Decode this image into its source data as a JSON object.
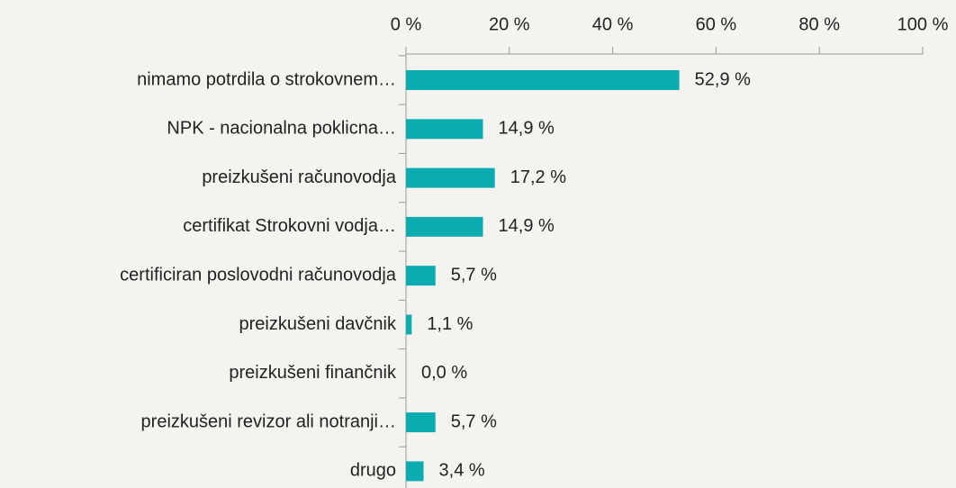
{
  "chart_data": {
    "type": "bar",
    "orientation": "horizontal",
    "categories": [
      "nimamo potrdila o strokovnem…",
      "NPK - nacionalna poklicna…",
      "preizkušeni računovodja",
      "certifikat Strokovni vodja…",
      "certificiran poslovodni računovodja",
      "preizkušeni davčnik",
      "preizkušeni finančnik",
      "preizkušeni revizor ali notranji…",
      "drugo"
    ],
    "values": [
      52.9,
      14.9,
      17.2,
      14.9,
      5.7,
      1.1,
      0.0,
      5.7,
      3.4
    ],
    "value_labels": [
      "52,9 %",
      "14,9 %",
      "17,2 %",
      "14,9 %",
      "5,7 %",
      "1,1 %",
      "0,0 %",
      "5,7 %",
      "3,4 %"
    ],
    "color": "#0aacb0",
    "xlim": [
      0,
      100
    ],
    "xticks": [
      {
        "value": 0,
        "label": "0 %"
      },
      {
        "value": 20,
        "label": "20 %"
      },
      {
        "value": 40,
        "label": "40 %"
      },
      {
        "value": 60,
        "label": "60 %"
      },
      {
        "value": 80,
        "label": "80 %"
      },
      {
        "value": 100,
        "label": "100 %"
      }
    ]
  }
}
